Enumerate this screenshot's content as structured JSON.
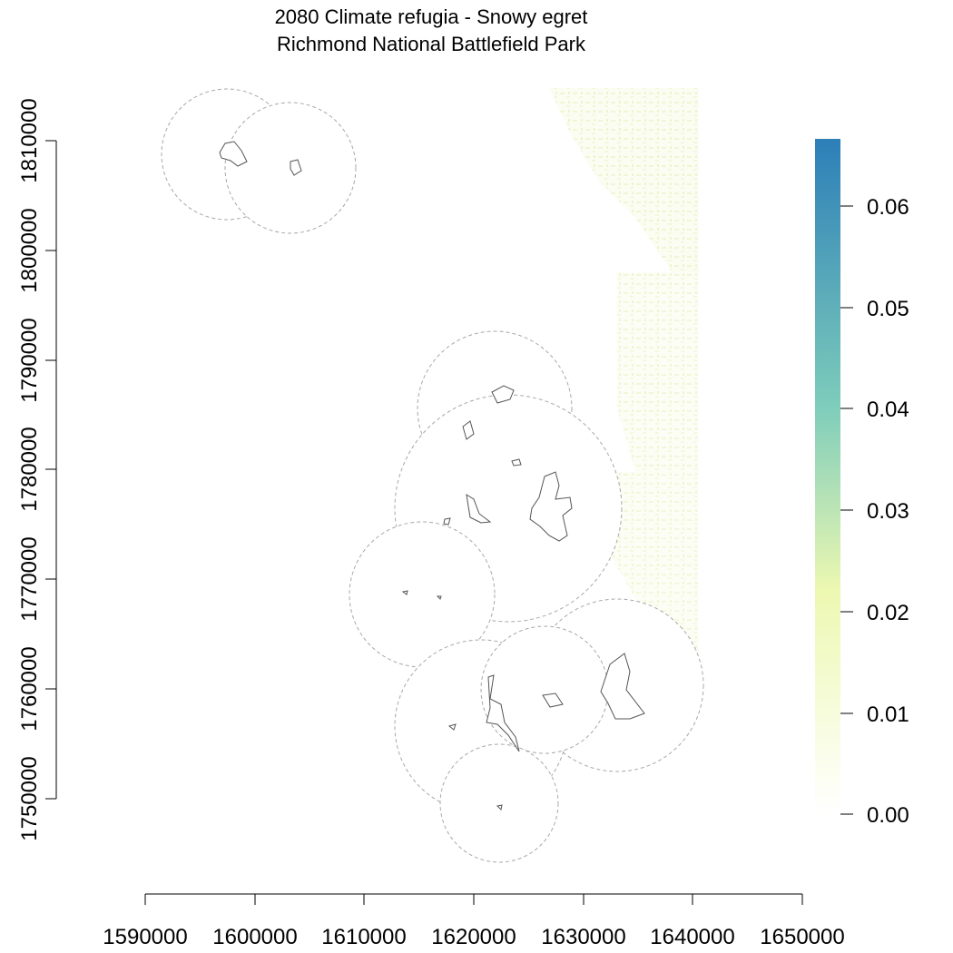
{
  "title": {
    "line1": "2080 Climate refugia - Snowy egret",
    "line2": "Richmond National Battlefield Park"
  },
  "axes": {
    "x_ticks": [
      "1590000",
      "1600000",
      "1610000",
      "1620000",
      "1630000",
      "1640000",
      "1650000"
    ],
    "y_ticks": [
      "1750000",
      "1760000",
      "1770000",
      "1780000",
      "1790000",
      "1800000",
      "1810000"
    ],
    "x_range": [
      1590000,
      1650000
    ],
    "y_range": [
      1750000,
      1810000
    ]
  },
  "legend": {
    "ticks": [
      "0.00",
      "0.01",
      "0.02",
      "0.03",
      "0.04",
      "0.05",
      "0.06"
    ],
    "range": [
      0,
      0.066
    ],
    "colors": [
      "#ffffff",
      "#edf8b1",
      "#7fcdbb",
      "#2c7fb8"
    ],
    "placement": "right"
  },
  "layers": {
    "refugia_raster_color": "#f2f7d9",
    "buffer_outline_color": "#a8a8a8",
    "park_unit_outline_color": "#555555"
  }
}
